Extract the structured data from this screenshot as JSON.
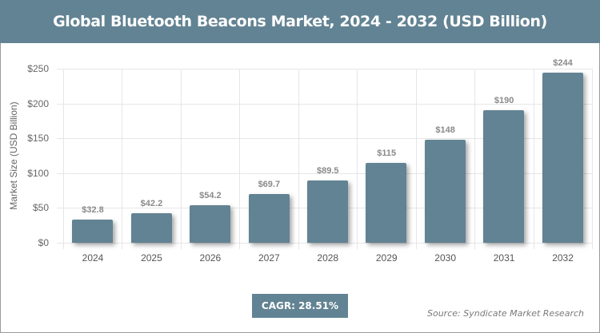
{
  "header": {
    "title": "Global Bluetooth Beacons Market, 2024 - 2032 (USD Billion)"
  },
  "axis": {
    "ylabel": "Market Size (USD Billion)",
    "yticks": [
      "$0",
      "$50",
      "$100",
      "$150",
      "$200",
      "$250"
    ]
  },
  "bars": [
    {
      "year": "2024",
      "label": "$32.8",
      "value": 32.8
    },
    {
      "year": "2025",
      "label": "$42.2",
      "value": 42.2
    },
    {
      "year": "2026",
      "label": "$54.2",
      "value": 54.2
    },
    {
      "year": "2027",
      "label": "$69.7",
      "value": 69.7
    },
    {
      "year": "2028",
      "label": "$89.5",
      "value": 89.5
    },
    {
      "year": "2029",
      "label": "$115",
      "value": 115
    },
    {
      "year": "2030",
      "label": "$148",
      "value": 148
    },
    {
      "year": "2031",
      "label": "$190",
      "value": 190
    },
    {
      "year": "2032",
      "label": "$244",
      "value": 244
    }
  ],
  "footer": {
    "cagr": "CAGR: 28.51%",
    "source": "Source: Syndicate Market Research"
  },
  "colors": {
    "accent": "#628393",
    "bar": "#628393"
  },
  "chart_data": {
    "type": "bar",
    "title": "Global Bluetooth Beacons Market, 2024 - 2032 (USD Billion)",
    "categories": [
      "2024",
      "2025",
      "2026",
      "2027",
      "2028",
      "2029",
      "2030",
      "2031",
      "2032"
    ],
    "values": [
      32.8,
      42.2,
      54.2,
      69.7,
      89.5,
      115,
      148,
      190,
      244
    ],
    "data_labels": [
      "$32.8",
      "$42.2",
      "$54.2",
      "$69.7",
      "$89.5",
      "$115",
      "$148",
      "$190",
      "$244"
    ],
    "xlabel": "",
    "ylabel": "Market Size (USD Billion)",
    "ylim": [
      0,
      250
    ],
    "yticks": [
      0,
      50,
      100,
      150,
      200,
      250
    ],
    "grid": true,
    "legend": null,
    "annotations": [
      "CAGR: 28.51%",
      "Source: Syndicate Market Research"
    ]
  }
}
